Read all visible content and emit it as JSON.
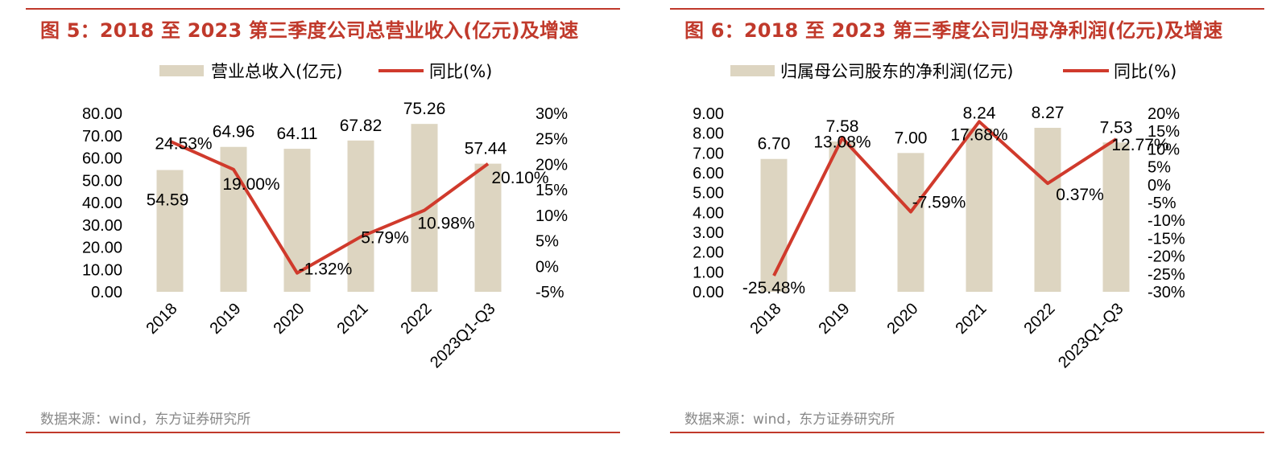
{
  "colors": {
    "bar": "#ddd5c1",
    "line": "#d03a2c",
    "title": "#c0392b",
    "source": "#888888"
  },
  "charts": [
    {
      "title": "图 5：2018 至 2023 第三季度公司总营业收入(亿元)及增速",
      "source": "数据来源：wind，东方证券研究所",
      "legend": {
        "bar_label": "营业总收入(亿元)",
        "line_label": "同比(%)"
      }
    },
    {
      "title": "图 6：2018 至 2023 第三季度公司归母净利润(亿元)及增速",
      "source": "数据来源：wind，东方证券研究所",
      "legend": {
        "bar_label": "归属母公司股东的净利润(亿元)",
        "line_label": "同比(%)"
      }
    }
  ],
  "chart_data": [
    {
      "type": "bar",
      "title": "图 5：2018 至 2023 第三季度公司总营业收入(亿元)及增速",
      "categories": [
        "2018",
        "2019",
        "2020",
        "2021",
        "2022",
        "2023Q1-Q3"
      ],
      "series": [
        {
          "name": "营业总收入(亿元)",
          "type": "bar",
          "axis": "left",
          "values": [
            54.59,
            64.96,
            64.11,
            67.82,
            75.26,
            57.44
          ],
          "labels": [
            "54.59",
            "64.96",
            "64.11",
            "67.82",
            "75.26",
            "57.44"
          ]
        },
        {
          "name": "同比(%)",
          "type": "line",
          "axis": "right",
          "values": [
            24.53,
            19.0,
            -1.32,
            5.79,
            10.98,
            20.1
          ],
          "labels": [
            "24.53%",
            "19.00%",
            "-1.32%",
            "5.79%",
            "10.98%",
            "20.10%"
          ]
        }
      ],
      "left_axis": {
        "range": [
          0,
          80
        ],
        "ticks": [
          "0.00",
          "10.00",
          "20.00",
          "30.00",
          "40.00",
          "50.00",
          "60.00",
          "70.00",
          "80.00"
        ]
      },
      "right_axis": {
        "range": [
          -5,
          30
        ],
        "ticks": [
          "-5%",
          "0%",
          "5%",
          "10%",
          "15%",
          "20%",
          "25%",
          "30%"
        ]
      },
      "grid": false,
      "legend_position": "top"
    },
    {
      "type": "bar",
      "title": "图 6：2018 至 2023 第三季度公司归母净利润(亿元)及增速",
      "categories": [
        "2018",
        "2019",
        "2020",
        "2021",
        "2022",
        "2023Q1-Q3"
      ],
      "series": [
        {
          "name": "归属母公司股东的净利润(亿元)",
          "type": "bar",
          "axis": "left",
          "values": [
            6.7,
            7.58,
            7.0,
            8.24,
            8.27,
            7.53
          ],
          "labels": [
            "6.70",
            "7.58",
            "7.00",
            "8.24",
            "8.27",
            "7.53"
          ]
        },
        {
          "name": "同比(%)",
          "type": "line",
          "axis": "right",
          "values": [
            -25.48,
            13.08,
            -7.59,
            17.68,
            0.37,
            12.77
          ],
          "labels": [
            "-25.48%",
            "13.08%",
            "-7.59%",
            "17.68%",
            "0.37%",
            "12.77%"
          ]
        }
      ],
      "left_axis": {
        "range": [
          0,
          9
        ],
        "ticks": [
          "0.00",
          "1.00",
          "2.00",
          "3.00",
          "4.00",
          "5.00",
          "6.00",
          "7.00",
          "8.00",
          "9.00"
        ]
      },
      "right_axis": {
        "range": [
          -30,
          20
        ],
        "ticks": [
          "-30%",
          "-25%",
          "-20%",
          "-15%",
          "-10%",
          "-5%",
          "0%",
          "5%",
          "10%",
          "15%",
          "20%"
        ]
      },
      "grid": false,
      "legend_position": "top"
    }
  ]
}
